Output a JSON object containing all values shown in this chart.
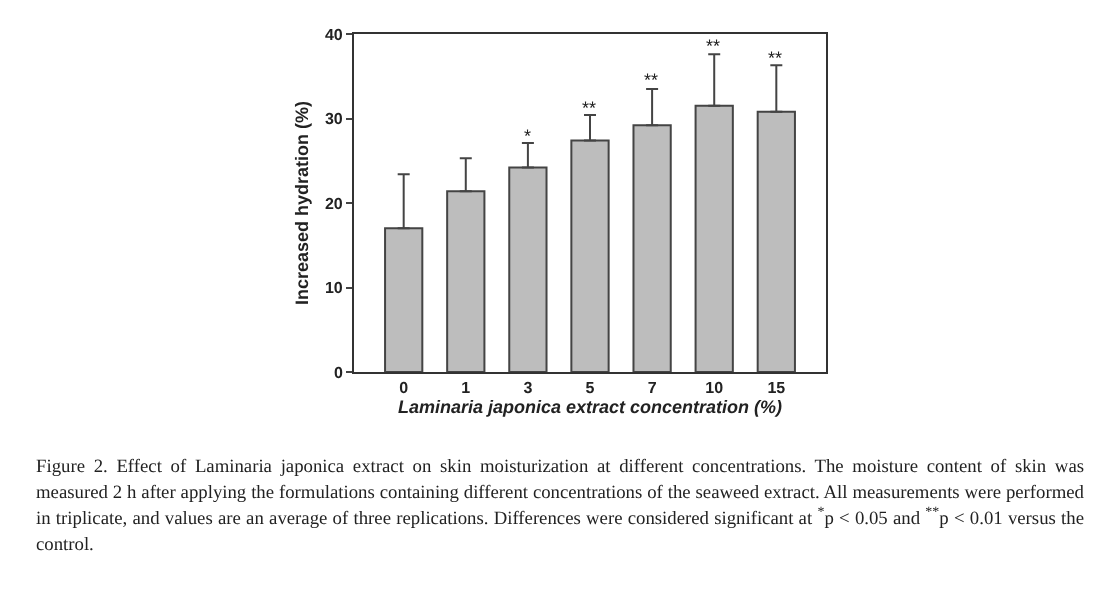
{
  "chart_data": {
    "type": "bar",
    "xlabel": "Laminaria japonica extract concentration (%)",
    "ylabel": "Increased hydration (%)",
    "categories": [
      "0",
      "1",
      "3",
      "5",
      "7",
      "10",
      "15"
    ],
    "series": [
      {
        "color": "#bdbdbd",
        "values": [
          17.0,
          21.4,
          24.2,
          27.4,
          29.2,
          31.5,
          30.8
        ],
        "errors": [
          [
            17.0,
            23.4
          ],
          [
            21.4,
            25.3
          ],
          [
            24.2,
            27.1
          ],
          [
            27.4,
            30.4
          ],
          [
            29.2,
            33.5
          ],
          [
            31.5,
            37.6
          ],
          [
            30.8,
            36.3
          ]
        ]
      }
    ],
    "ylim": [
      0,
      40
    ],
    "yticks": [
      0,
      10,
      20,
      30,
      40
    ],
    "grid": false,
    "annotations": [
      {
        "text": "*",
        "x": "3"
      },
      {
        "text": "**",
        "x": "5"
      },
      {
        "text": "**",
        "x": "7"
      },
      {
        "text": "**",
        "x": "10"
      },
      {
        "text": "**",
        "x": "15"
      },
      "Figure 2. Effect of Laminaria japonica extract on skin moisturization at different concentrations. The moisture content of skin was measured 2 h after applying the formulations containing different concentrations of the seaweed extract. All measurements were performed in triplicate, and values are an average of three replications. Differences were considered significant at $^{*}$p < 0.05 and $^{**}$p < 0.01 versus the control."
    ]
  }
}
